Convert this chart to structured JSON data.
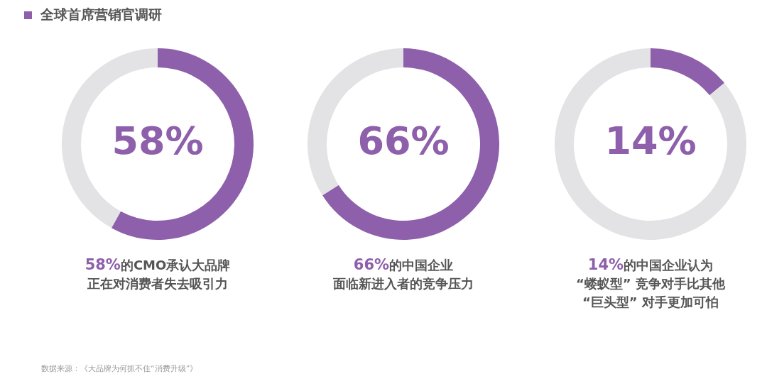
{
  "chart_data": [
    {
      "type": "other",
      "title": "全球首席营销官调研",
      "annotations": [
        "数据来源：《大品牌为何抓不住“消费升级”》"
      ]
    },
    {
      "type": "donut",
      "categories": [
        null,
        null
      ],
      "values": [
        58,
        42
      ],
      "colors": [
        "#8e5fab",
        "#e3e3e6"
      ],
      "value_labels": [
        "58%",
        null
      ],
      "annotations": [
        "58%的CMO承认大品牌",
        "正在对消费者失去吸引力"
      ]
    },
    {
      "type": "donut",
      "categories": [
        null,
        null
      ],
      "values": [
        66,
        34
      ],
      "colors": [
        "#8e5fab",
        "#e3e3e6"
      ],
      "value_labels": [
        "66%",
        null
      ],
      "annotations": [
        "66%的中国企业",
        "面临新进入者的竞争压力"
      ]
    },
    {
      "type": "donut",
      "categories": [
        null,
        null
      ],
      "values": [
        14,
        86
      ],
      "colors": [
        "#8e5fab",
        "#e3e3e6"
      ],
      "value_labels": [
        "14%",
        null
      ],
      "annotations": [
        "14%的中国企业认为",
        "“蝼蚁型” 竞争对手比其他",
        "“巨头型” 对手更加可怕"
      ]
    }
  ]
}
